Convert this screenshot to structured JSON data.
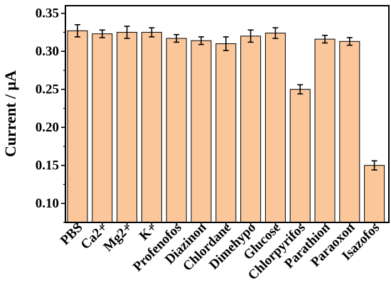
{
  "chart_data": {
    "type": "bar",
    "title": "",
    "xlabel": "",
    "ylabel": "Current / μA",
    "ylim": [
      0.075,
      0.36
    ],
    "yticks": [
      "0.10",
      "0.15",
      "0.20",
      "0.25",
      "0.30",
      "0.35"
    ],
    "grid": false,
    "legend": "none",
    "bar_color": "#fbc79a",
    "categories": [
      "PBS",
      "Ca2+",
      "Mg2+",
      "K+",
      "Profenofos",
      "Diazinon",
      "Chlordane",
      "Dimehypo",
      "Glucose",
      "Chlorpyrifos",
      "Parathion",
      "Paraoxon",
      "Isazofos"
    ],
    "values": [
      0.327,
      0.323,
      0.325,
      0.325,
      0.317,
      0.314,
      0.31,
      0.32,
      0.324,
      0.25,
      0.316,
      0.313,
      0.15
    ],
    "errors": [
      0.008,
      0.005,
      0.008,
      0.006,
      0.005,
      0.005,
      0.009,
      0.008,
      0.007,
      0.006,
      0.005,
      0.005,
      0.006
    ]
  }
}
